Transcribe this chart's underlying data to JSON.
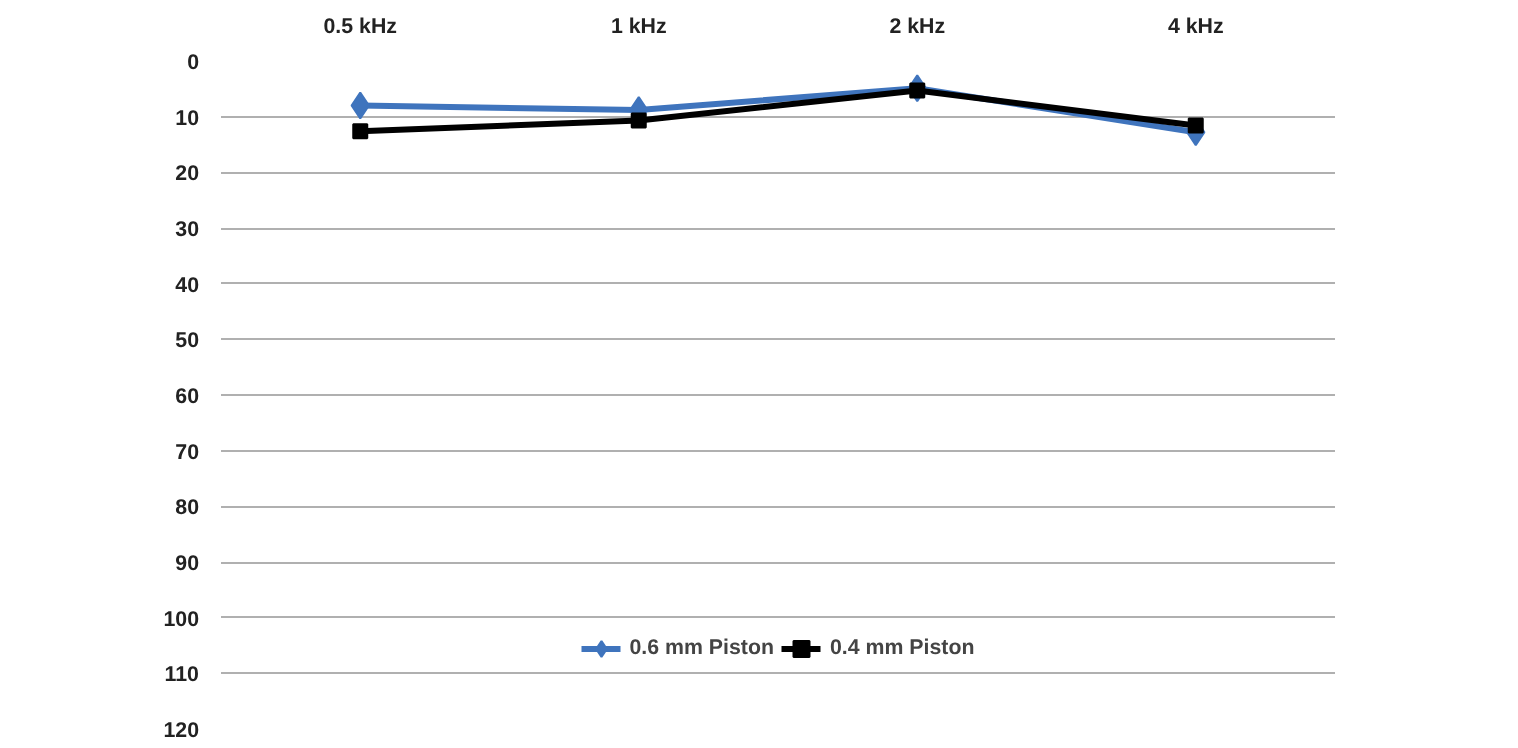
{
  "chart_data": {
    "type": "line",
    "categories": [
      "0.5 kHz",
      "1 kHz",
      "2 kHz",
      "4 kHz"
    ],
    "series": [
      {
        "name": "0.6 mm Piston",
        "color": "#3f74bd",
        "marker": "diamond",
        "values": [
          8,
          8.8,
          4.9,
          12.8
        ]
      },
      {
        "name": "0.4 mm Piston",
        "color": "#000000",
        "marker": "square",
        "values": [
          12.6,
          10.7,
          5.3,
          11.6
        ]
      }
    ],
    "ylim": [
      120,
      0
    ],
    "yticks": [
      0,
      10,
      20,
      30,
      40,
      50,
      60,
      70,
      80,
      90,
      100,
      110,
      120
    ],
    "grid": "y",
    "legend": "bottom",
    "line_style": "solid"
  }
}
